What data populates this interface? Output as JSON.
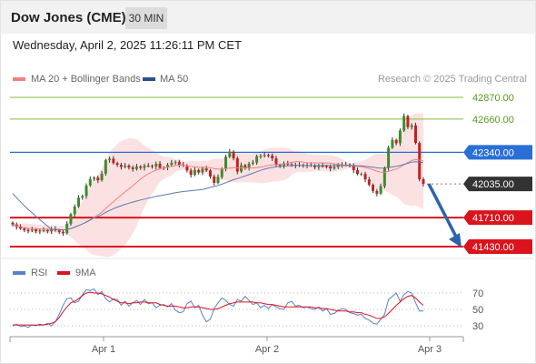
{
  "header": {
    "title": "Dow Jones (CME)",
    "timeframe": "30 MIN"
  },
  "date_line": "Wednesday, April 2, 2025 11:26:11 PM CET",
  "legend": {
    "ma20": "MA 20 + Bollinger Bands",
    "ma50": "MA 50",
    "credit": "Research © 2025 Trading Central"
  },
  "rsi_legend": {
    "rsi": "RSI",
    "ma9": "9MA"
  },
  "colors": {
    "resistance": "#7fbf3f",
    "pivot": "#2a6fd6",
    "current": "#444444",
    "support": "#d9141c",
    "candle_up": "#3c8c2c",
    "candle_down": "#c42020",
    "band_fill": "#f9c9ca",
    "ma20": "#f08080",
    "ma50": "#5b7bb0",
    "rsi": "#5b7fcf",
    "rsi_ma": "#d9141c",
    "arrow": "#2a64ad"
  },
  "chart_data": {
    "type": "candlestick",
    "price_range": [
      41400,
      42930
    ],
    "x_ticks": [
      "Apr 1",
      "Apr 2",
      "Apr 3"
    ],
    "levels": [
      {
        "value": 42870,
        "label": "42870.00",
        "kind": "resistance"
      },
      {
        "value": 42660,
        "label": "42660.00",
        "kind": "resistance"
      },
      {
        "value": 42340,
        "label": "42340.00",
        "kind": "pivot"
      },
      {
        "value": 42035,
        "label": "42035.00",
        "kind": "current"
      },
      {
        "value": 41710,
        "label": "41710.00",
        "kind": "support"
      },
      {
        "value": 41430,
        "label": "41430.00",
        "kind": "support"
      }
    ],
    "closes": [
      41643,
      41620,
      41605,
      41590,
      41584,
      41596,
      41578,
      41585,
      41590,
      41578,
      41600,
      41587,
      41572,
      41560,
      41651,
      41743,
      41817,
      41901,
      41918,
      42020,
      42083,
      42095,
      42070,
      42134,
      42265,
      42278,
      42236,
      42219,
      42199,
      42212,
      42194,
      42178,
      42203,
      42190,
      42211,
      42209,
      42202,
      42230,
      42189,
      42193,
      42218,
      42239,
      42248,
      42221,
      42212,
      42165,
      42122,
      42169,
      42146,
      42183,
      42165,
      42106,
      42045,
      42101,
      42182,
      42297,
      42346,
      42282,
      42154,
      42215,
      42191,
      42229,
      42240,
      42303,
      42304,
      42314,
      42309,
      42281,
      42217,
      42209,
      42232,
      42223,
      42219,
      42212,
      42218,
      42211,
      42217,
      42212,
      42196,
      42208,
      42207,
      42203,
      42184,
      42198,
      42224,
      42218,
      42221,
      42214,
      42167,
      42131,
      42132,
      42078,
      42026,
      41967,
      41941,
      42012,
      42189,
      42385,
      42459,
      42428,
      42550,
      42689,
      42584,
      42600,
      42430,
      42080,
      42035
    ],
    "rsi": {
      "levels": [
        70,
        50,
        30
      ],
      "values": [
        30,
        32,
        29,
        30,
        28,
        31,
        30,
        32,
        31,
        33,
        30,
        35,
        44,
        55,
        63,
        64,
        58,
        60,
        68,
        74,
        73,
        75,
        68,
        72,
        63,
        59,
        63,
        62,
        55,
        60,
        54,
        58,
        61,
        56,
        62,
        57,
        58,
        52,
        55,
        56,
        53,
        57,
        49,
        46,
        47,
        57,
        60,
        52,
        55,
        43,
        35,
        38,
        51,
        58,
        64,
        61,
        56,
        54,
        62,
        60,
        66,
        61,
        56,
        58,
        52,
        55,
        51,
        56,
        53,
        51,
        50,
        58,
        60,
        54,
        55,
        52,
        53,
        51,
        50,
        53,
        48,
        51,
        44,
        45,
        49,
        51,
        50,
        46,
        45,
        43,
        44,
        39,
        37,
        33,
        32,
        38,
        44,
        62,
        66,
        70,
        60,
        68,
        72,
        70,
        58,
        48,
        48
      ],
      "ma9": [
        31,
        31,
        31,
        31,
        31,
        31,
        31,
        31,
        31,
        32,
        33,
        35,
        40,
        47,
        53,
        58,
        60,
        63,
        67,
        70,
        71,
        70,
        70,
        69,
        67,
        65,
        62,
        60,
        58,
        58,
        57,
        58,
        58,
        59,
        59,
        58,
        58,
        58,
        56,
        55,
        54,
        54,
        54,
        53,
        52,
        52,
        53,
        53,
        53,
        52,
        51,
        50,
        50,
        51,
        53,
        55,
        57,
        58,
        59,
        59,
        59,
        59,
        59,
        58,
        58,
        57,
        56,
        56,
        55,
        54,
        53,
        53,
        53,
        53,
        53,
        53,
        53,
        53,
        52,
        52,
        51,
        51,
        50,
        49,
        48,
        48,
        48,
        47,
        47,
        46,
        46,
        44,
        43,
        41,
        39,
        39,
        41,
        45,
        50,
        55,
        59,
        63,
        66,
        67,
        64,
        59,
        55
      ]
    }
  }
}
